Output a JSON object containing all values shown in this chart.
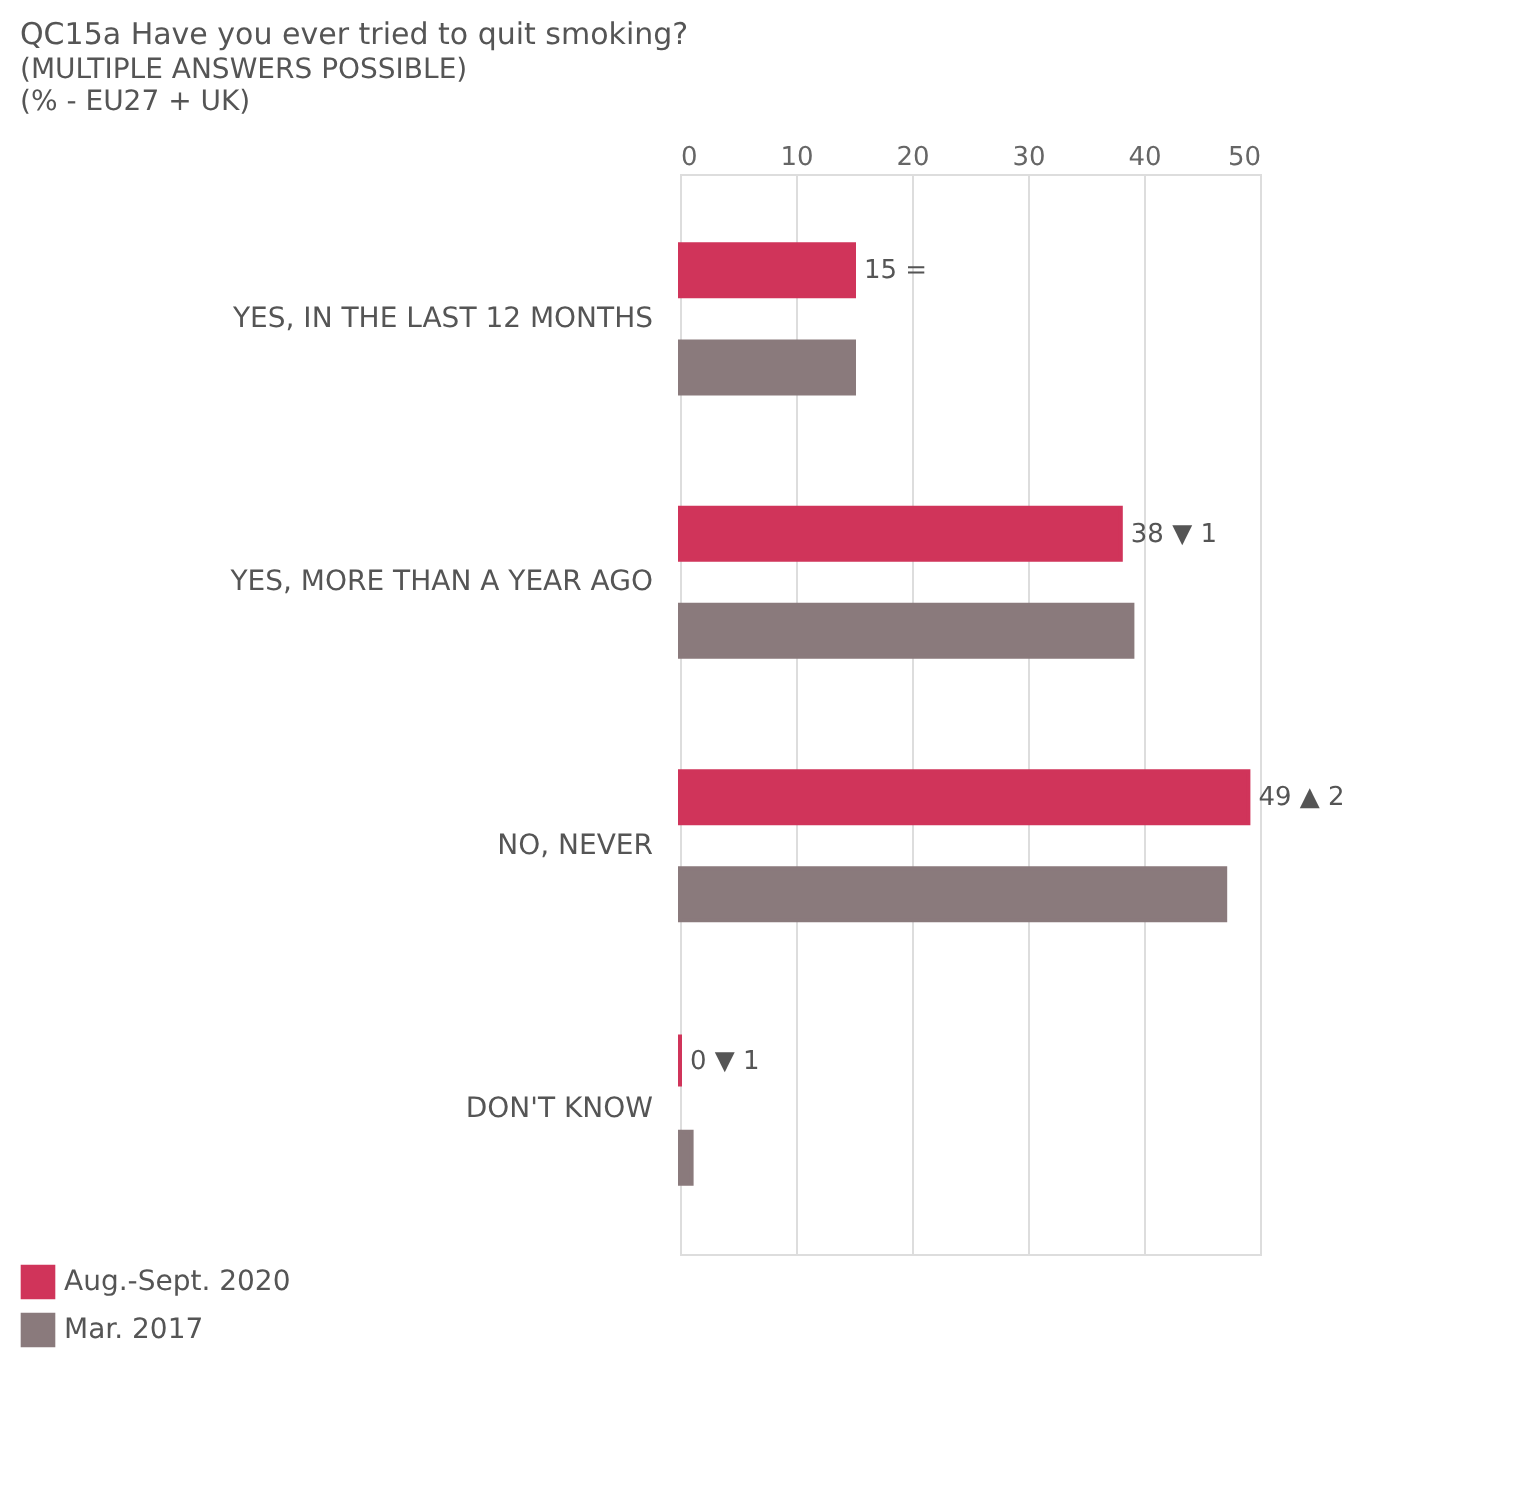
{
  "chart_data": {
    "type": "bar",
    "orientation": "horizontal",
    "title": "QC15a Have you ever tried to quit smoking?",
    "subtitle": [
      "(MULTIPLE ANSWERS POSSIBLE)",
      "(% - EU27 + UK)"
    ],
    "categories": [
      "YES, IN THE LAST 12 MONTHS",
      "YES, MORE THAN A YEAR AGO",
      "NO, NEVER",
      "DON'T KNOW"
    ],
    "series": [
      {
        "name": "Aug.-Sept. 2020",
        "color": "#d0345a",
        "values": [
          15,
          38,
          49,
          0
        ],
        "value_labels": [
          "15 =",
          "38 ▼ 1",
          "49 ▲ 2",
          "0 ▼ 1"
        ]
      },
      {
        "name": "Mar. 2017",
        "color": "#8a7a7c",
        "values": [
          15,
          39,
          47,
          1
        ]
      }
    ],
    "xlim": [
      0,
      50
    ],
    "xticks": [
      0,
      10,
      20,
      30,
      40,
      50
    ],
    "grid": "x",
    "legend": "bottom left"
  }
}
